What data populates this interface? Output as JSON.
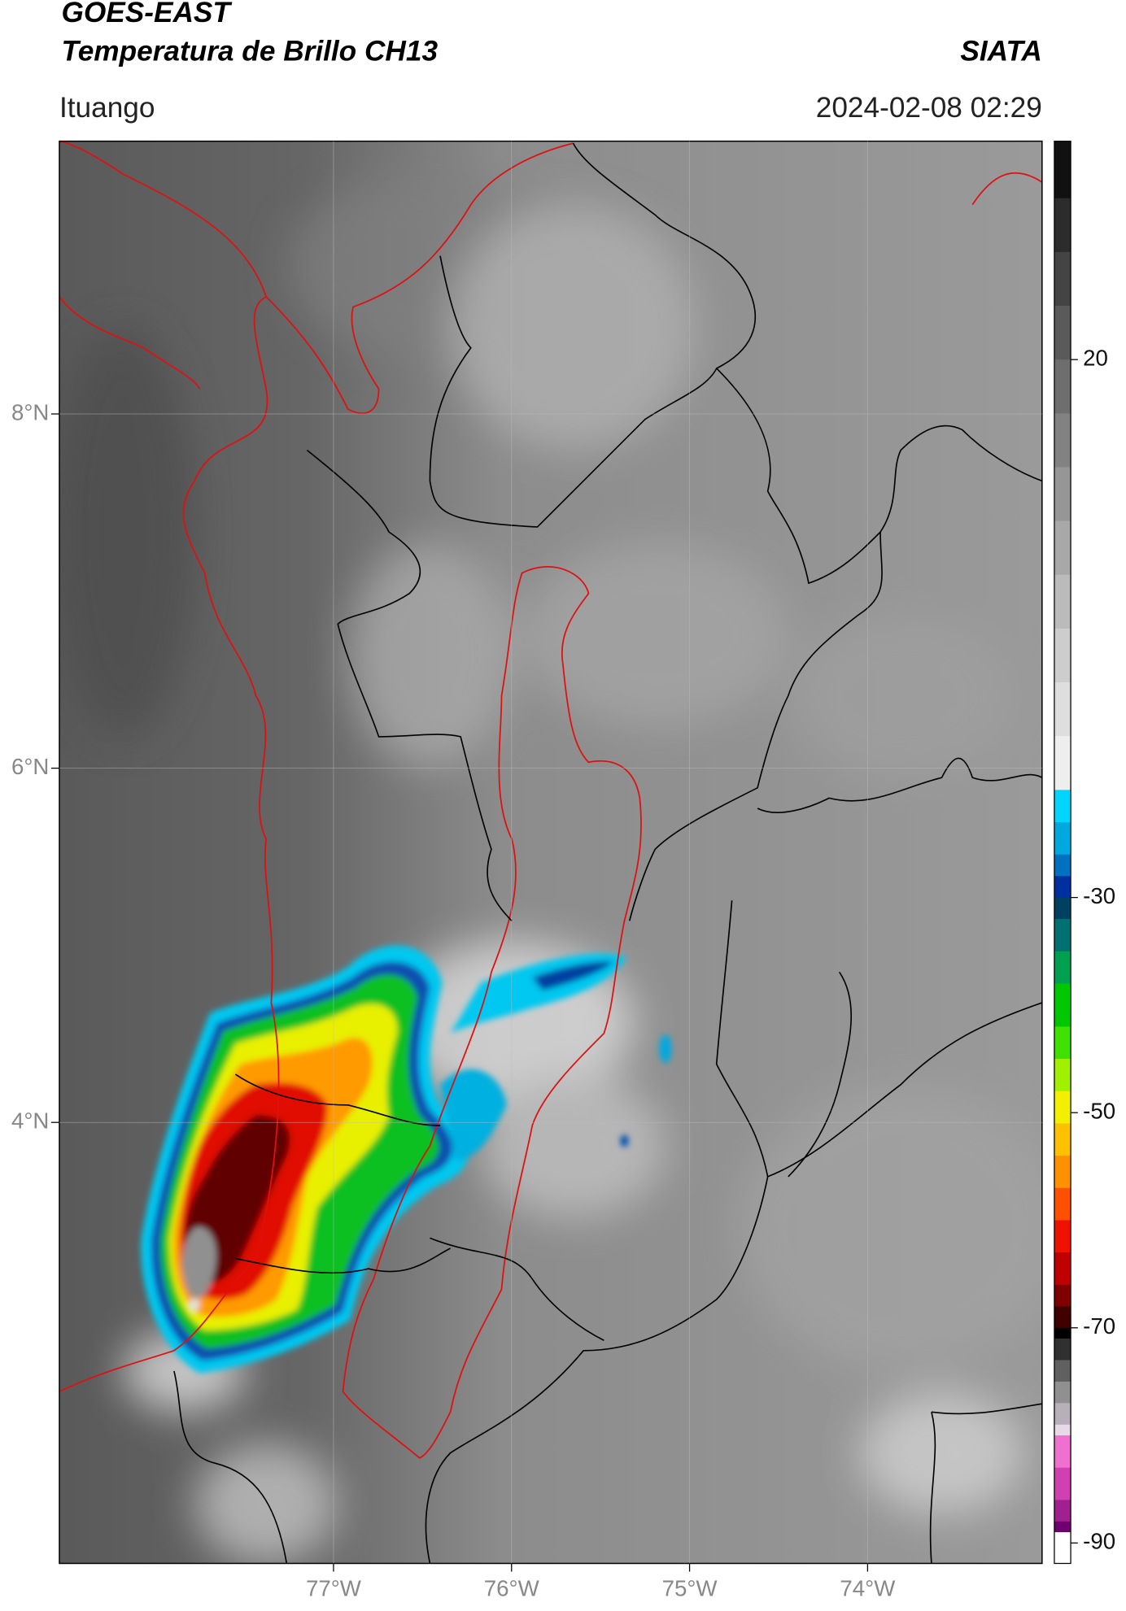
{
  "header": {
    "title": "GOES-EAST",
    "subtitle": "Temperatura de Brillo CH13",
    "source": "SIATA",
    "location": "Ituango",
    "datetime": "2024-02-08 02:29"
  },
  "map": {
    "xlim": [
      -78.54,
      -73.02
    ],
    "ylim": [
      1.51,
      9.54
    ],
    "xticks": [
      {
        "value": -77,
        "label": "77°W"
      },
      {
        "value": -76,
        "label": "76°W"
      },
      {
        "value": -75,
        "label": "75°W"
      },
      {
        "value": -74,
        "label": "74°W"
      }
    ],
    "yticks": [
      {
        "value": 4,
        "label": "4°N"
      },
      {
        "value": 6,
        "label": "6°N"
      },
      {
        "value": 8,
        "label": "8°N"
      }
    ],
    "grid": true
  },
  "colorbar": {
    "lim": [
      -91.9,
      40.3
    ],
    "ticks": [
      20,
      -30,
      -50,
      -70,
      -90
    ],
    "stops": [
      {
        "value": 40.3,
        "color": "#111111"
      },
      {
        "value": 35,
        "color": "#2c2c2c"
      },
      {
        "value": 30,
        "color": "#444444"
      },
      {
        "value": 25,
        "color": "#5a5a5a"
      },
      {
        "value": 20,
        "color": "#6e6e6e"
      },
      {
        "value": 15,
        "color": "#828282"
      },
      {
        "value": 10,
        "color": "#969696"
      },
      {
        "value": 5,
        "color": "#a8a8a8"
      },
      {
        "value": 0,
        "color": "#bbbbbb"
      },
      {
        "value": -5,
        "color": "#cdcdcd"
      },
      {
        "value": -10,
        "color": "#dedede"
      },
      {
        "value": -15,
        "color": "#eeeeee"
      },
      {
        "value": -20,
        "color": "#00d4ff"
      },
      {
        "value": -23,
        "color": "#00a8e0"
      },
      {
        "value": -26,
        "color": "#0070c0"
      },
      {
        "value": -28,
        "color": "#0030a0"
      },
      {
        "value": -30,
        "color": "#004060"
      },
      {
        "value": -32,
        "color": "#007070"
      },
      {
        "value": -35,
        "color": "#00a050"
      },
      {
        "value": -38,
        "color": "#00c800"
      },
      {
        "value": -42,
        "color": "#40e000"
      },
      {
        "value": -45,
        "color": "#a0f000"
      },
      {
        "value": -48,
        "color": "#f0f000"
      },
      {
        "value": -51,
        "color": "#ffc000"
      },
      {
        "value": -54,
        "color": "#ff9000"
      },
      {
        "value": -57,
        "color": "#ff5000"
      },
      {
        "value": -60,
        "color": "#f01000"
      },
      {
        "value": -63,
        "color": "#c00000"
      },
      {
        "value": -66,
        "color": "#800000"
      },
      {
        "value": -68,
        "color": "#400000"
      },
      {
        "value": -70,
        "color": "#000000"
      },
      {
        "value": -71,
        "color": "#303030"
      },
      {
        "value": -73,
        "color": "#606060"
      },
      {
        "value": -75,
        "color": "#909090"
      },
      {
        "value": -77,
        "color": "#b8b0b8"
      },
      {
        "value": -79,
        "color": "#e8d8e8"
      },
      {
        "value": -80,
        "color": "#f070d0"
      },
      {
        "value": -83,
        "color": "#d040b0"
      },
      {
        "value": -86,
        "color": "#a02090"
      },
      {
        "value": -88,
        "color": "#700070"
      },
      {
        "value": -89,
        "color": "#ffffff"
      }
    ]
  }
}
